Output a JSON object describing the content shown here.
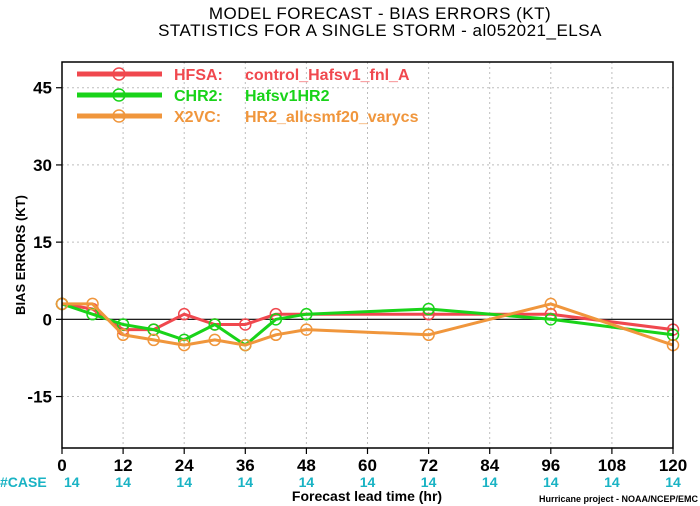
{
  "chart_data": {
    "type": "line",
    "title": "MODEL FORECAST - BIAS ERRORS (KT)",
    "subtitle": "STATISTICS FOR A SINGLE STORM - al052021_ELSA",
    "xlabel": "Forecast lead time (hr)",
    "ylabel": "BIAS ERRORS (KT)",
    "xlim": [
      0,
      120
    ],
    "ylim": [
      -25,
      50
    ],
    "x_ticks": [
      0,
      12,
      24,
      36,
      48,
      60,
      72,
      84,
      96,
      108,
      120
    ],
    "y_ticks": [
      -15,
      0,
      15,
      30,
      45
    ],
    "grid": true,
    "zero_line": true,
    "legend_position": "top-left",
    "series": [
      {
        "name": "HFSA",
        "label": "control_Hafsv1_fnl_A",
        "color": "#f0484e",
        "points": [
          [
            0,
            3
          ],
          [
            6,
            2
          ],
          [
            12,
            -2
          ],
          [
            18,
            -2
          ],
          [
            24,
            1
          ],
          [
            30,
            -1
          ],
          [
            36,
            -1
          ],
          [
            42,
            1
          ],
          [
            72,
            1
          ],
          [
            96,
            1
          ],
          [
            120,
            -2
          ]
        ]
      },
      {
        "name": "CHR2",
        "label": "Hafsv1HR2",
        "color": "#19d319",
        "points": [
          [
            0,
            3
          ],
          [
            6,
            1
          ],
          [
            12,
            -1
          ],
          [
            18,
            -2
          ],
          [
            24,
            -4
          ],
          [
            30,
            -1
          ],
          [
            36,
            -5
          ],
          [
            42,
            0
          ],
          [
            48,
            1
          ],
          [
            72,
            2
          ],
          [
            96,
            0
          ],
          [
            120,
            -3
          ]
        ]
      },
      {
        "name": "X2VC",
        "label": "HR2_allcsmf20_varycs",
        "color": "#f0963c",
        "points": [
          [
            0,
            3
          ],
          [
            6,
            3
          ],
          [
            12,
            -3
          ],
          [
            18,
            -4
          ],
          [
            24,
            -5
          ],
          [
            30,
            -4
          ],
          [
            36,
            -5
          ],
          [
            42,
            -3
          ],
          [
            48,
            -2
          ],
          [
            72,
            -3
          ],
          [
            96,
            3
          ],
          [
            120,
            -5
          ]
        ]
      }
    ],
    "case_label": "#CASE",
    "case_counts": [
      {
        "x": 0,
        "count": "14"
      },
      {
        "x": 12,
        "count": "14"
      },
      {
        "x": 24,
        "count": "14"
      },
      {
        "x": 36,
        "count": "14"
      },
      {
        "x": 48,
        "count": "14"
      },
      {
        "x": 60,
        "count": "14"
      },
      {
        "x": 72,
        "count": "14"
      },
      {
        "x": 84,
        "count": "14"
      },
      {
        "x": 96,
        "count": "14"
      },
      {
        "x": 108,
        "count": "14"
      },
      {
        "x": 120,
        "count": "14"
      }
    ],
    "credit": "Hurricane project - NOAA/NCEP/EMC"
  }
}
